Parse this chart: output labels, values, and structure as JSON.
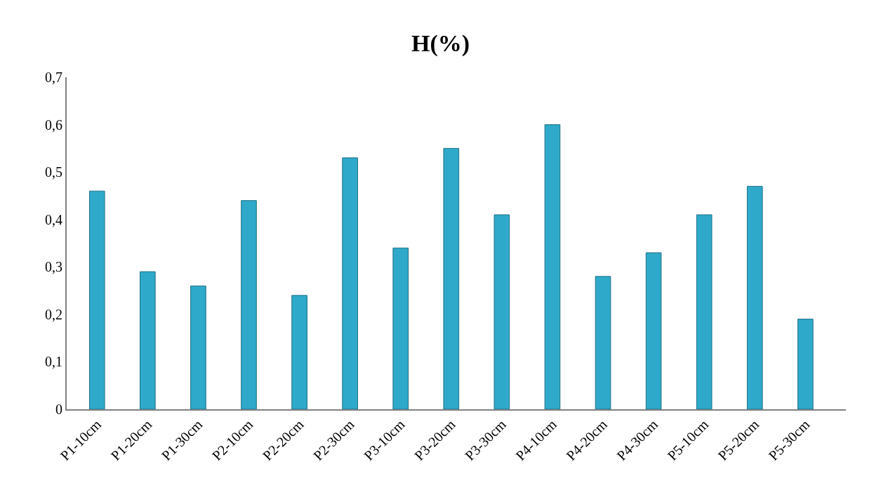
{
  "chart_data": {
    "type": "bar",
    "title": "H(%)",
    "categories": [
      "P1-10cm",
      "P1-20cm",
      "P1-30cm",
      "P2-10cm",
      "P2-20cm",
      "P2-30cm",
      "P3-10cm",
      "P3-20cm",
      "P3-30cm",
      "P4-10cm",
      "P4-20cm",
      "P4-30cm",
      "P5-10cm",
      "P5-20cm",
      "P5-30cm"
    ],
    "values": [
      0.46,
      0.29,
      0.26,
      0.44,
      0.24,
      0.53,
      0.34,
      0.55,
      0.41,
      0.6,
      0.28,
      0.33,
      0.41,
      0.47,
      0.19
    ],
    "color": "#2fa9c9",
    "ylim": [
      0,
      0.7
    ],
    "yticks": [
      {
        "value": 0,
        "label": "0"
      },
      {
        "value": 0.1,
        "label": "0,1"
      },
      {
        "value": 0.2,
        "label": "0,2"
      },
      {
        "value": 0.3,
        "label": "0,3"
      },
      {
        "value": 0.4,
        "label": "0,4"
      },
      {
        "value": 0.5,
        "label": "0,5"
      },
      {
        "value": 0.6,
        "label": "0,6"
      },
      {
        "value": 0.7,
        "label": "0,7"
      }
    ],
    "tick_labels": [
      "x",
      "y"
    ]
  }
}
